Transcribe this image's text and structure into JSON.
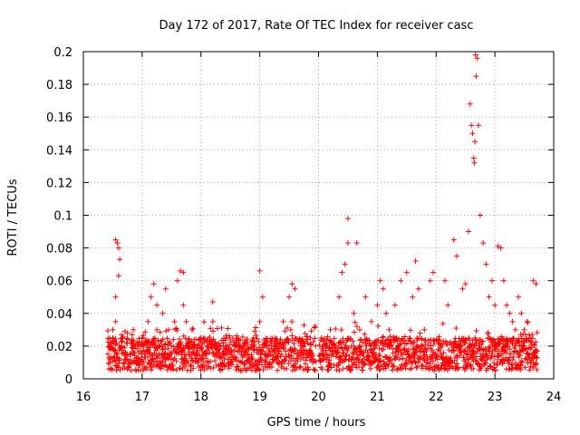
{
  "chart_data": {
    "type": "scatter",
    "title": "Day 172 of 2017, Rate Of TEC Index for receiver casc",
    "xlabel": "GPS time / hours",
    "ylabel": "ROTI / TECUs",
    "xlim": [
      16,
      24
    ],
    "ylim": [
      0,
      0.2
    ],
    "xticks": [
      16,
      17,
      18,
      19,
      20,
      21,
      22,
      23,
      24
    ],
    "xtick_labels": [
      "16",
      "17",
      "18",
      "19",
      "20",
      "21",
      "22",
      "23",
      "24"
    ],
    "yticks": [
      0,
      0.02,
      0.04,
      0.06,
      0.08,
      0.1,
      0.12,
      0.14,
      0.16,
      0.18,
      0.2
    ],
    "ytick_labels": [
      "0",
      "0.02",
      "0.04",
      "0.06",
      "0.08",
      "0.1",
      "0.12",
      "0.14",
      "0.16",
      "0.18",
      "0.2"
    ],
    "grid": true,
    "marker": "+",
    "marker_color": "#ff0000",
    "series": [
      {
        "name": "ROTI",
        "x": [
          16.45,
          16.5,
          16.55,
          16.6,
          16.55,
          16.58,
          16.6,
          16.62,
          16.5,
          16.55,
          16.65,
          16.7,
          16.75,
          16.8,
          16.85,
          16.9,
          16.95,
          17.0,
          17.05,
          17.1,
          17.15,
          17.2,
          17.25,
          17.25,
          17.3,
          17.35,
          17.4,
          17.45,
          17.5,
          17.55,
          17.6,
          17.65,
          17.7,
          17.7,
          17.75,
          17.75,
          17.8,
          17.85,
          17.9,
          17.95,
          18.0,
          18.1,
          18.2,
          18.2,
          18.3,
          18.4,
          18.5,
          18.6,
          18.7,
          18.8,
          18.9,
          19.0,
          19.0,
          19.05,
          19.1,
          19.2,
          19.3,
          19.4,
          19.5,
          19.55,
          19.6,
          19.7,
          19.8,
          19.9,
          19.95,
          20.05,
          20.1,
          20.2,
          20.3,
          20.35,
          20.4,
          20.45,
          20.5,
          20.5,
          20.6,
          20.65,
          20.7,
          20.8,
          20.9,
          21.0,
          21.05,
          21.1,
          21.15,
          21.2,
          21.3,
          21.4,
          21.5,
          21.6,
          21.65,
          21.7,
          21.8,
          21.9,
          21.95,
          22.1,
          22.15,
          22.2,
          22.3,
          22.35,
          22.4,
          22.45,
          22.5,
          22.55,
          22.58,
          22.6,
          22.62,
          22.64,
          22.65,
          22.66,
          22.67,
          22.68,
          22.7,
          22.72,
          22.75,
          22.8,
          22.85,
          22.9,
          22.95,
          23.0,
          23.05,
          23.1,
          23.15,
          23.2,
          23.25,
          23.3,
          23.35,
          23.4,
          23.45,
          23.5,
          23.55,
          23.6,
          23.65,
          23.7
        ],
        "y": [
          0.01,
          0.03,
          0.05,
          0.063,
          0.085,
          0.083,
          0.08,
          0.073,
          0.025,
          0.035,
          0.02,
          0.012,
          0.028,
          0.015,
          0.03,
          0.01,
          0.02,
          0.025,
          0.015,
          0.035,
          0.05,
          0.058,
          0.045,
          0.03,
          0.02,
          0.04,
          0.055,
          0.03,
          0.02,
          0.035,
          0.06,
          0.066,
          0.065,
          0.045,
          0.035,
          0.02,
          0.015,
          0.03,
          0.02,
          0.01,
          0.025,
          0.02,
          0.035,
          0.047,
          0.02,
          0.015,
          0.01,
          0.02,
          0.01,
          0.015,
          0.02,
          0.035,
          0.066,
          0.05,
          0.015,
          0.02,
          0.01,
          0.035,
          0.05,
          0.058,
          0.055,
          0.02,
          0.015,
          0.01,
          0.02,
          0.025,
          0.015,
          0.03,
          0.02,
          0.05,
          0.065,
          0.07,
          0.098,
          0.083,
          0.04,
          0.083,
          0.03,
          0.05,
          0.035,
          0.045,
          0.06,
          0.055,
          0.04,
          0.03,
          0.045,
          0.06,
          0.065,
          0.05,
          0.072,
          0.055,
          0.03,
          0.06,
          0.065,
          0.02,
          0.06,
          0.045,
          0.085,
          0.075,
          0.02,
          0.055,
          0.058,
          0.09,
          0.168,
          0.155,
          0.15,
          0.135,
          0.132,
          0.145,
          0.198,
          0.185,
          0.196,
          0.155,
          0.1,
          0.083,
          0.07,
          0.05,
          0.06,
          0.045,
          0.081,
          0.08,
          0.06,
          0.045,
          0.04,
          0.035,
          0.03,
          0.05,
          0.04,
          0.03,
          0.035,
          0.025,
          0.06,
          0.058
        ],
        "dense_band_y_range": [
          0.005,
          0.025
        ]
      }
    ]
  }
}
